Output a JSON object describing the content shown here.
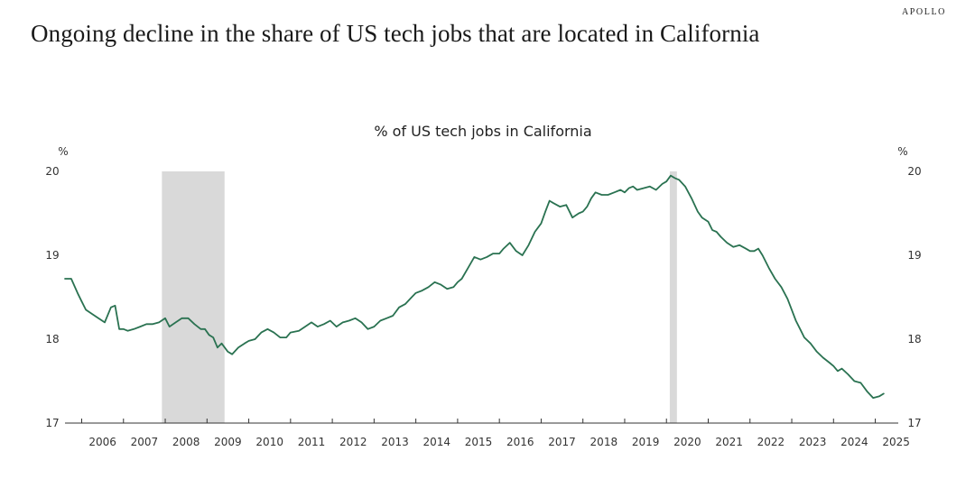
{
  "header": {
    "brand": "APOLLO",
    "title": "Ongoing decline in the share of US tech jobs that are located in California"
  },
  "colors": {
    "line": "#2a7251",
    "recession": "#d9d9d9",
    "axis": "#333333"
  },
  "chart_data": {
    "type": "line",
    "title": "% of US tech jobs in California",
    "ylabel_left": "%",
    "ylabel_right": "%",
    "ylim": [
      17,
      20
    ],
    "yticks": [
      17,
      18,
      19,
      20
    ],
    "xlim": [
      2005.6,
      2025.55
    ],
    "xtick_labels": [
      "2006",
      "2007",
      "2008",
      "2009",
      "2010",
      "2011",
      "2012",
      "2013",
      "2014",
      "2015",
      "2016",
      "2017",
      "2018",
      "2019",
      "2020",
      "2021",
      "2022",
      "2023",
      "2024",
      "2025"
    ],
    "recessions": [
      {
        "start": 2007.92,
        "end": 2009.42
      },
      {
        "start": 2020.08,
        "end": 2020.25
      }
    ],
    "series": [
      {
        "name": "% of US tech jobs in California",
        "x": [
          2005.6,
          2005.75,
          2005.9,
          2006.0,
          2006.1,
          2006.25,
          2006.4,
          2006.55,
          2006.7,
          2006.8,
          2006.9,
          2007.0,
          2007.1,
          2007.25,
          2007.4,
          2007.55,
          2007.7,
          2007.85,
          2008.0,
          2008.1,
          2008.25,
          2008.4,
          2008.55,
          2008.7,
          2008.85,
          2008.95,
          2009.05,
          2009.15,
          2009.25,
          2009.35,
          2009.5,
          2009.6,
          2009.75,
          2009.9,
          2010.0,
          2010.15,
          2010.3,
          2010.45,
          2010.6,
          2010.75,
          2010.9,
          2011.0,
          2011.2,
          2011.35,
          2011.5,
          2011.65,
          2011.8,
          2011.95,
          2012.1,
          2012.25,
          2012.4,
          2012.55,
          2012.7,
          2012.85,
          2013.0,
          2013.15,
          2013.3,
          2013.45,
          2013.6,
          2013.75,
          2013.9,
          2014.0,
          2014.15,
          2014.3,
          2014.45,
          2014.6,
          2014.75,
          2014.9,
          2015.0,
          2015.1,
          2015.25,
          2015.4,
          2015.55,
          2015.7,
          2015.85,
          2016.0,
          2016.1,
          2016.25,
          2016.4,
          2016.55,
          2016.7,
          2016.85,
          2017.0,
          2017.1,
          2017.2,
          2017.3,
          2017.45,
          2017.6,
          2017.75,
          2017.9,
          2018.0,
          2018.1,
          2018.2,
          2018.3,
          2018.45,
          2018.6,
          2018.75,
          2018.9,
          2019.0,
          2019.1,
          2019.2,
          2019.3,
          2019.45,
          2019.6,
          2019.75,
          2019.9,
          2020.0,
          2020.1,
          2020.2,
          2020.3,
          2020.45,
          2020.6,
          2020.75,
          2020.85,
          2021.0,
          2021.1,
          2021.2,
          2021.3,
          2021.45,
          2021.6,
          2021.75,
          2021.9,
          2022.0,
          2022.1,
          2022.2,
          2022.3,
          2022.45,
          2022.6,
          2022.75,
          2022.9,
          2023.0,
          2023.1,
          2023.2,
          2023.3,
          2023.45,
          2023.6,
          2023.75,
          2023.9,
          2024.0,
          2024.1,
          2024.2,
          2024.35,
          2024.5,
          2024.65,
          2024.8,
          2024.95,
          2025.1,
          2025.2
        ],
        "values": [
          18.72,
          18.72,
          18.55,
          18.45,
          18.35,
          18.3,
          18.25,
          18.2,
          18.38,
          18.4,
          18.12,
          18.12,
          18.1,
          18.12,
          18.15,
          18.18,
          18.18,
          18.2,
          18.25,
          18.15,
          18.2,
          18.25,
          18.25,
          18.18,
          18.12,
          18.12,
          18.05,
          18.02,
          17.9,
          17.95,
          17.85,
          17.82,
          17.9,
          17.95,
          17.98,
          18.0,
          18.08,
          18.12,
          18.08,
          18.02,
          18.02,
          18.08,
          18.1,
          18.15,
          18.2,
          18.15,
          18.18,
          18.22,
          18.15,
          18.2,
          18.22,
          18.25,
          18.2,
          18.12,
          18.15,
          18.22,
          18.25,
          18.28,
          18.38,
          18.42,
          18.5,
          18.55,
          18.58,
          18.62,
          18.68,
          18.65,
          18.6,
          18.62,
          18.68,
          18.72,
          18.85,
          18.98,
          18.95,
          18.98,
          19.02,
          19.02,
          19.08,
          19.15,
          19.05,
          19.0,
          19.12,
          19.28,
          19.38,
          19.52,
          19.65,
          19.62,
          19.58,
          19.6,
          19.45,
          19.5,
          19.52,
          19.58,
          19.68,
          19.75,
          19.72,
          19.72,
          19.75,
          19.78,
          19.75,
          19.8,
          19.82,
          19.78,
          19.8,
          19.82,
          19.78,
          19.85,
          19.88,
          19.95,
          19.92,
          19.9,
          19.82,
          19.68,
          19.52,
          19.45,
          19.4,
          19.3,
          19.28,
          19.22,
          19.15,
          19.1,
          19.12,
          19.08,
          19.05,
          19.05,
          19.08,
          19.0,
          18.85,
          18.72,
          18.62,
          18.48,
          18.35,
          18.22,
          18.12,
          18.02,
          17.95,
          17.85,
          17.78,
          17.72,
          17.68,
          17.62,
          17.65,
          17.58,
          17.5,
          17.48,
          17.38,
          17.3,
          17.32,
          17.35
        ]
      }
    ]
  }
}
